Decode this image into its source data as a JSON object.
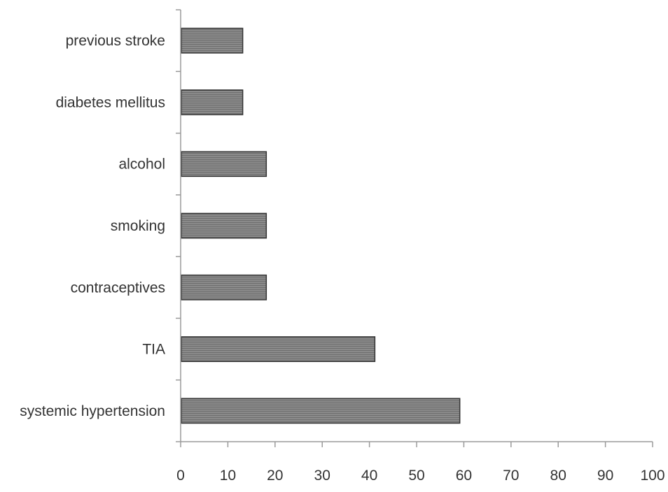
{
  "chart_data": {
    "type": "bar",
    "orientation": "horizontal",
    "title": "",
    "xlabel": "",
    "ylabel": "",
    "categories": [
      "previous stroke",
      "diabetes mellitus",
      "alcohol",
      "smoking",
      "contraceptives",
      "TIA",
      "systemic hypertension"
    ],
    "values": [
      13,
      13,
      18,
      18,
      18,
      41,
      59
    ],
    "xlim": [
      0,
      100
    ],
    "xticks": [
      "0",
      "10",
      "20",
      "30",
      "40",
      "50",
      "60",
      "70",
      "80",
      "90",
      "100"
    ],
    "grid": false,
    "legend": "none",
    "bar_color": "#7a7a7a",
    "axis_color": "#9a9a9a"
  }
}
